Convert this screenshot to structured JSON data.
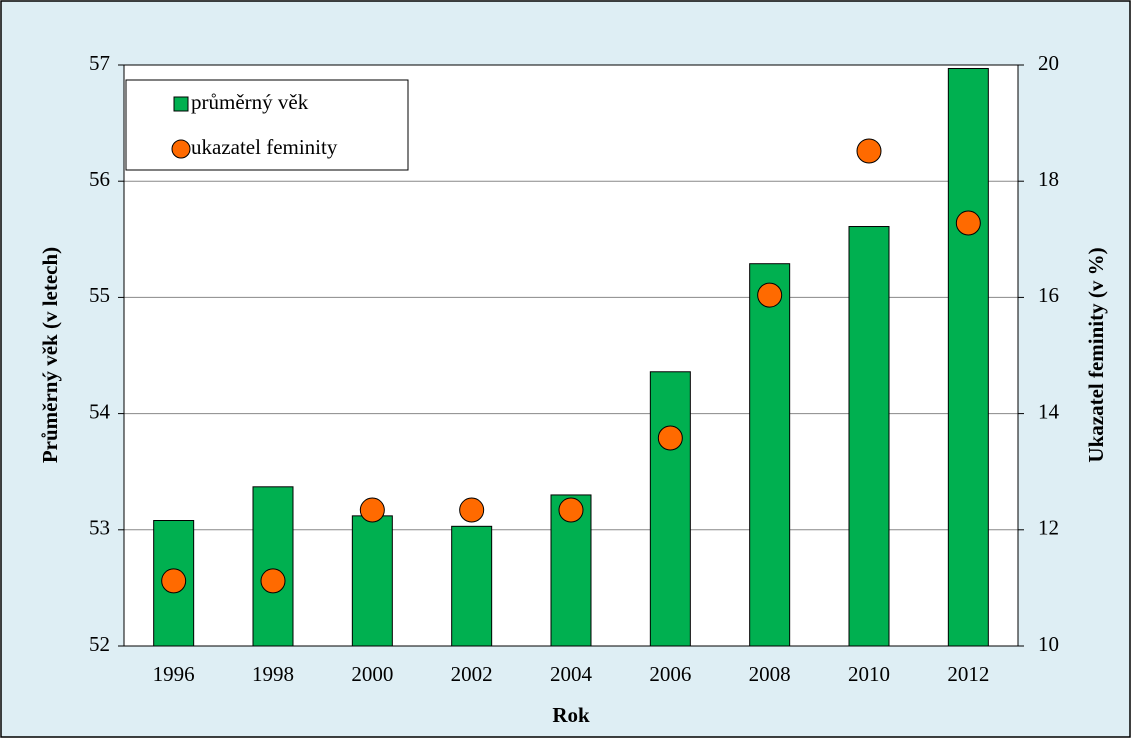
{
  "chart_data": {
    "type": "bar",
    "x_label": "Rok",
    "y_label": "Průměrný věk (v letech)",
    "y2_label": "Ukazatel feminity (v %)",
    "categories": [
      "1996",
      "1998",
      "2000",
      "2002",
      "2004",
      "2006",
      "2008",
      "2010",
      "2012"
    ],
    "series": [
      {
        "name": "průměrný věk",
        "type": "bar",
        "color": "#00b050",
        "axis": "y",
        "values": [
          53.08,
          53.37,
          53.12,
          53.03,
          53.3,
          54.36,
          55.29,
          55.61,
          56.97
        ]
      },
      {
        "name": "ukazatel feminity",
        "type": "scatter",
        "color": "#ff6a00",
        "axis": "y2",
        "values": [
          11.12,
          11.12,
          12.34,
          12.34,
          12.34,
          13.58,
          16.04,
          18.52,
          17.28
        ]
      }
    ],
    "ylim": [
      52,
      57
    ],
    "yticks": [
      52,
      53,
      54,
      55,
      56,
      57
    ],
    "y2lim": [
      10,
      20
    ],
    "y2ticks": [
      10,
      12,
      14,
      16,
      18,
      20
    ],
    "grid": true,
    "legend": "top-left"
  }
}
